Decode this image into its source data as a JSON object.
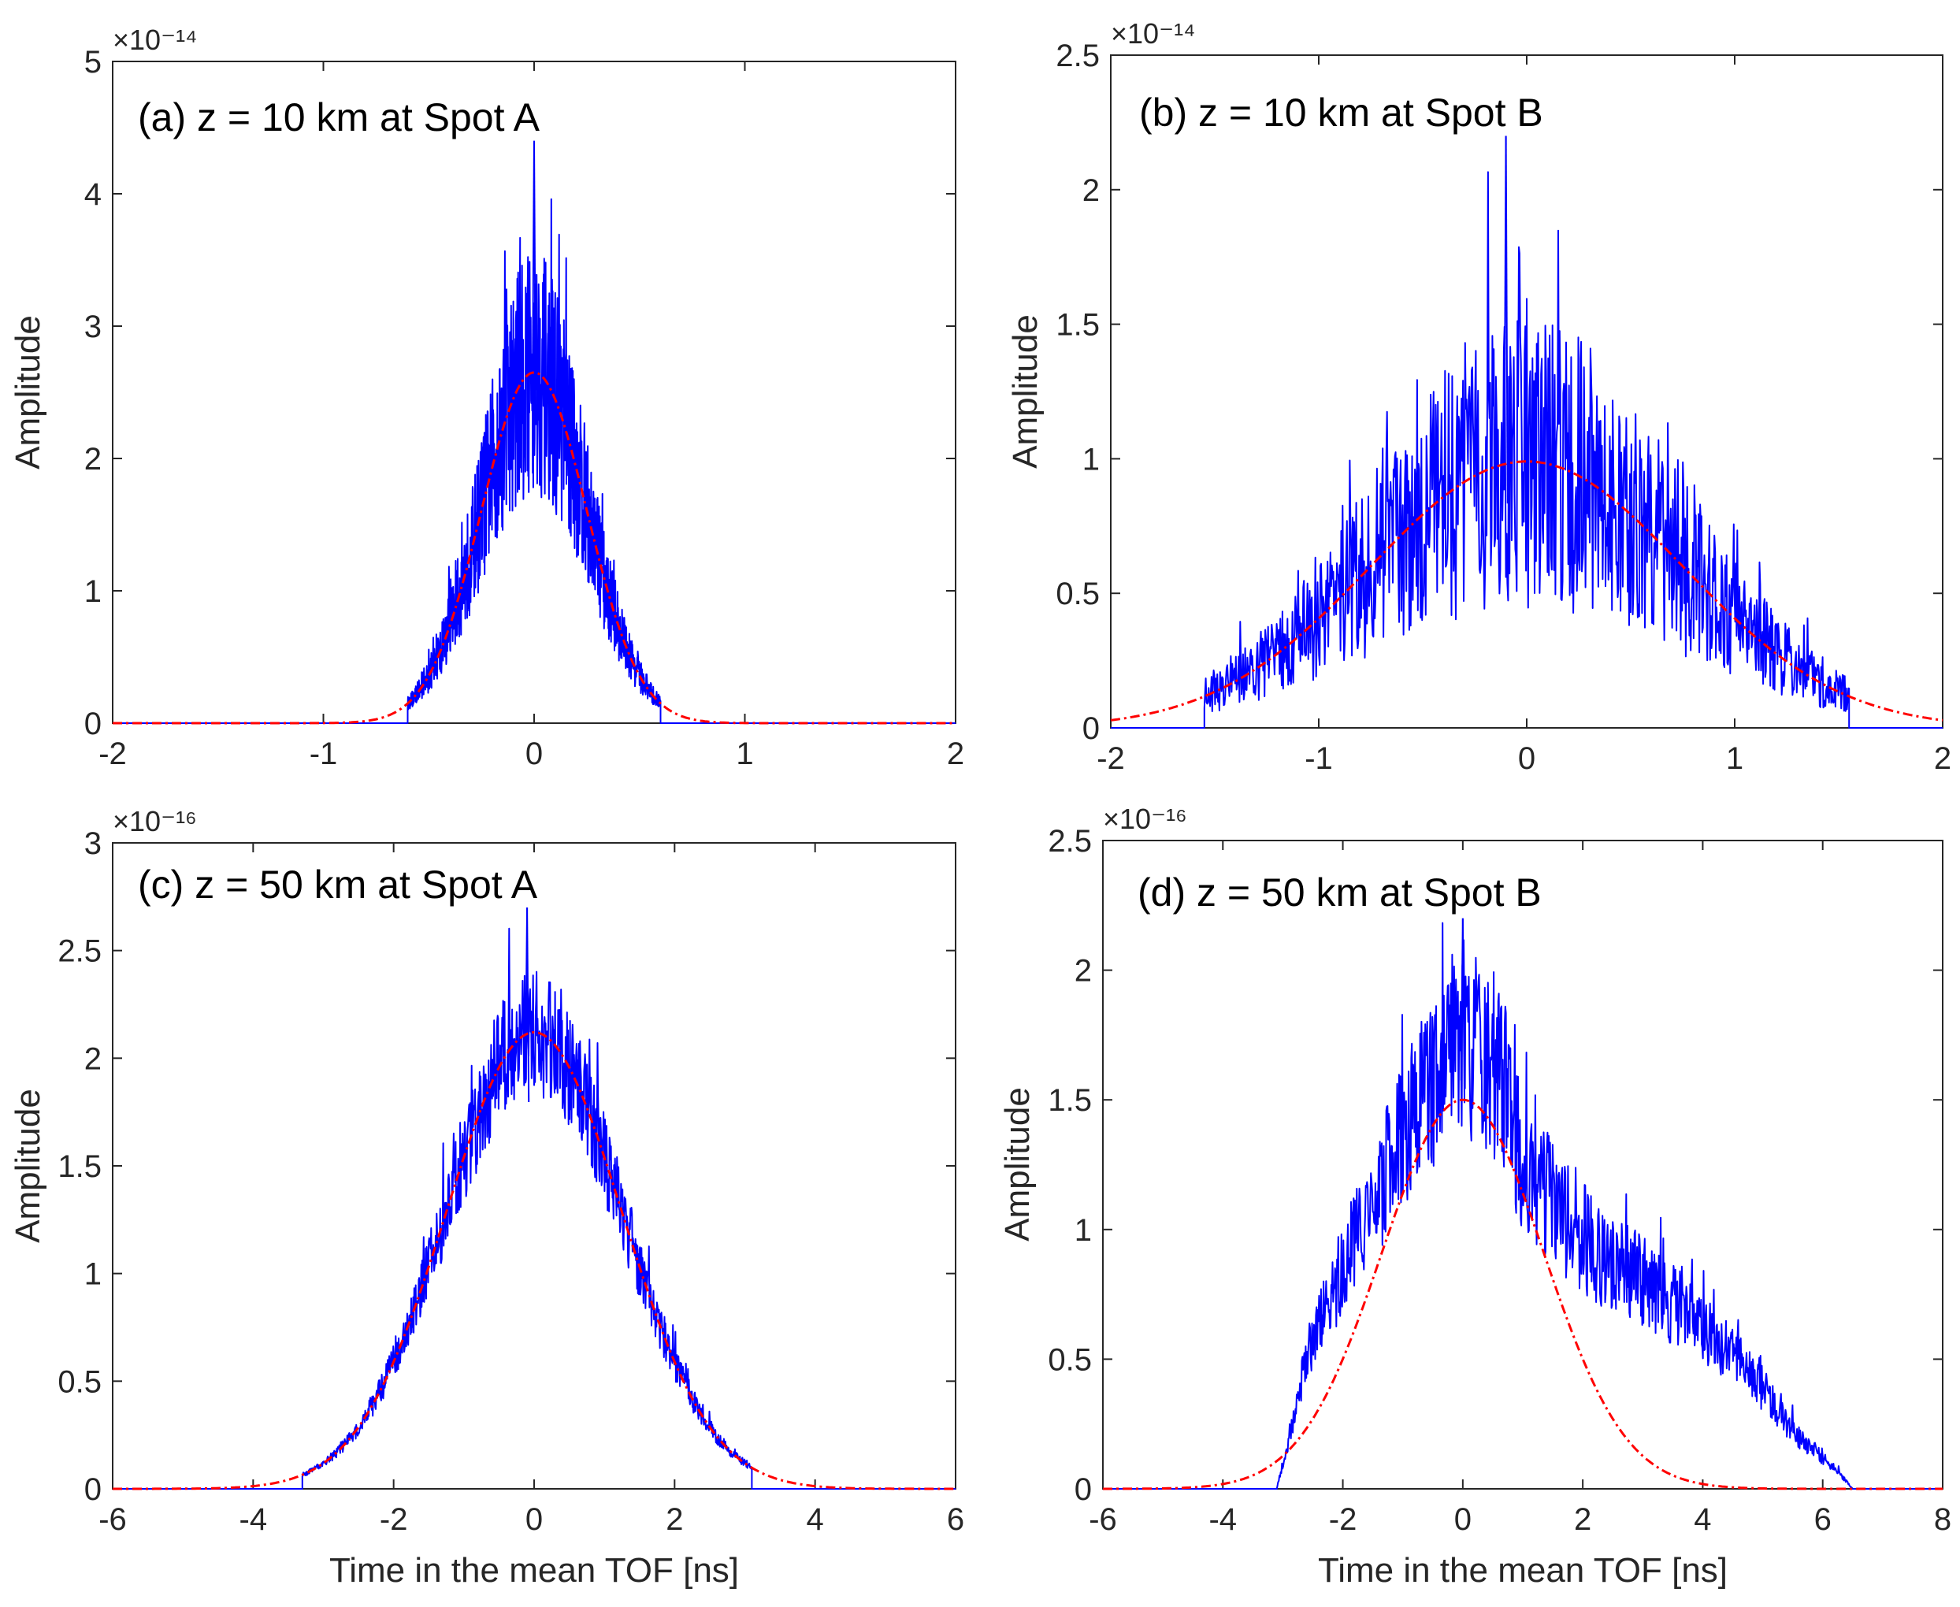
{
  "figure": {
    "xlabel": "Time in the mean TOF [ns]",
    "ylabel": "Amplitude"
  },
  "colors": {
    "signal": "#0000ff",
    "fit": "#ff0000",
    "axes": "#262626"
  },
  "chart_data": [
    {
      "id": "a",
      "type": "line",
      "title": "(a) z = 10 km at Spot A",
      "xlabel": "",
      "ylabel": "Amplitude",
      "x_range": [
        -2,
        2
      ],
      "y_range": [
        0,
        5
      ],
      "x_ticks": [
        -2,
        -1,
        0,
        1,
        2
      ],
      "x_tick_labels": [
        "-2",
        "-1",
        "0",
        "1",
        "2"
      ],
      "y_ticks": [
        0,
        1,
        2,
        3,
        4,
        5
      ],
      "y_tick_labels": [
        "0",
        "1",
        "2",
        "3",
        "4",
        "5"
      ],
      "exponent_label": "×10⁻¹⁴",
      "series": [
        {
          "name": "measured pulse",
          "style": "solid blue",
          "start": -0.6,
          "end": 0.6,
          "noise": 0.35,
          "peak": [
            0.0,
            4.4
          ]
        },
        {
          "name": "Gaussian fit",
          "style": "dash-dot red",
          "center": 0.0,
          "amplitude": 2.65,
          "sigma": 0.25
        }
      ]
    },
    {
      "id": "b",
      "type": "line",
      "title": "(b) z = 10 km at Spot B",
      "xlabel": "",
      "ylabel": "Amplitude",
      "x_range": [
        -2,
        2
      ],
      "y_range": [
        0,
        2.5
      ],
      "x_ticks": [
        -2,
        -1,
        0,
        1,
        2
      ],
      "x_tick_labels": [
        "-2",
        "-1",
        "0",
        "1",
        "2"
      ],
      "y_ticks": [
        0,
        0.5,
        1,
        1.5,
        2,
        2.5
      ],
      "y_tick_labels": [
        "0",
        "0.5",
        "1",
        "1.5",
        "2",
        "2.5"
      ],
      "exponent_label": "×10⁻¹⁴",
      "series": [
        {
          "name": "measured pulse",
          "style": "solid blue",
          "start": -1.55,
          "end": 1.55,
          "noise": 0.55,
          "peak": [
            -0.1,
            2.2
          ]
        },
        {
          "name": "Gaussian fit",
          "style": "dash-dot red",
          "center": 0.0,
          "amplitude": 0.99,
          "sigma": 0.75
        }
      ]
    },
    {
      "id": "c",
      "type": "line",
      "title": "(c) z = 50 km at Spot A",
      "xlabel": "Time in the mean TOF [ns]",
      "ylabel": "Amplitude",
      "x_range": [
        -6,
        6
      ],
      "y_range": [
        0,
        3
      ],
      "x_ticks": [
        -6,
        -4,
        -2,
        0,
        2,
        4,
        6
      ],
      "x_tick_labels": [
        "-6",
        "-4",
        "-2",
        "0",
        "2",
        "4",
        "6"
      ],
      "y_ticks": [
        0,
        0.5,
        1,
        1.5,
        2,
        2.5,
        3
      ],
      "y_tick_labels": [
        "0",
        "0.5",
        "1",
        "1.5",
        "2",
        "2.5",
        "3"
      ],
      "exponent_label": "×10⁻¹⁶",
      "series": [
        {
          "name": "measured pulse",
          "style": "solid blue",
          "start": -3.3,
          "end": 3.1,
          "noise": 0.14,
          "peak": [
            -0.1,
            2.7
          ]
        },
        {
          "name": "Gaussian fit",
          "style": "dash-dot red",
          "center": 0.0,
          "amplitude": 2.12,
          "sigma": 1.25
        }
      ]
    },
    {
      "id": "d",
      "type": "line",
      "title": "(d) z = 50 km at Spot B",
      "xlabel": "Time in the mean TOF [ns]",
      "ylabel": "Amplitude",
      "x_range": [
        -6,
        8
      ],
      "y_range": [
        0,
        2.5
      ],
      "x_ticks": [
        -6,
        -4,
        -2,
        0,
        2,
        4,
        6,
        8
      ],
      "x_tick_labels": [
        "-6",
        "-4",
        "-2",
        "0",
        "2",
        "4",
        "6",
        "8"
      ],
      "y_ticks": [
        0,
        0.5,
        1,
        1.5,
        2,
        2.5
      ],
      "y_tick_labels": [
        "0",
        "0.5",
        "1",
        "1.5",
        "2",
        "2.5"
      ],
      "exponent_label": "×10⁻¹⁶",
      "series": [
        {
          "name": "measured pulse",
          "style": "solid blue",
          "start": -3.1,
          "end": 6.5,
          "noise": 0.22,
          "peak": [
            0.0,
            2.2
          ],
          "profile": [
            [
              -3.1,
              0.0
            ],
            [
              -2.6,
              0.5
            ],
            [
              -2.0,
              0.85
            ],
            [
              -1.0,
              1.35
            ],
            [
              -0.2,
              1.7
            ],
            [
              0.0,
              1.75
            ],
            [
              0.7,
              1.55
            ],
            [
              1.0,
              1.25
            ],
            [
              2.0,
              0.95
            ],
            [
              3.0,
              0.8
            ],
            [
              4.0,
              0.62
            ],
            [
              4.8,
              0.45
            ],
            [
              5.5,
              0.22
            ],
            [
              6.2,
              0.08
            ],
            [
              6.5,
              0.0
            ]
          ]
        },
        {
          "name": "Gaussian fit",
          "style": "dash-dot red",
          "center": 0.0,
          "amplitude": 1.5,
          "sigma": 1.35
        }
      ]
    }
  ]
}
